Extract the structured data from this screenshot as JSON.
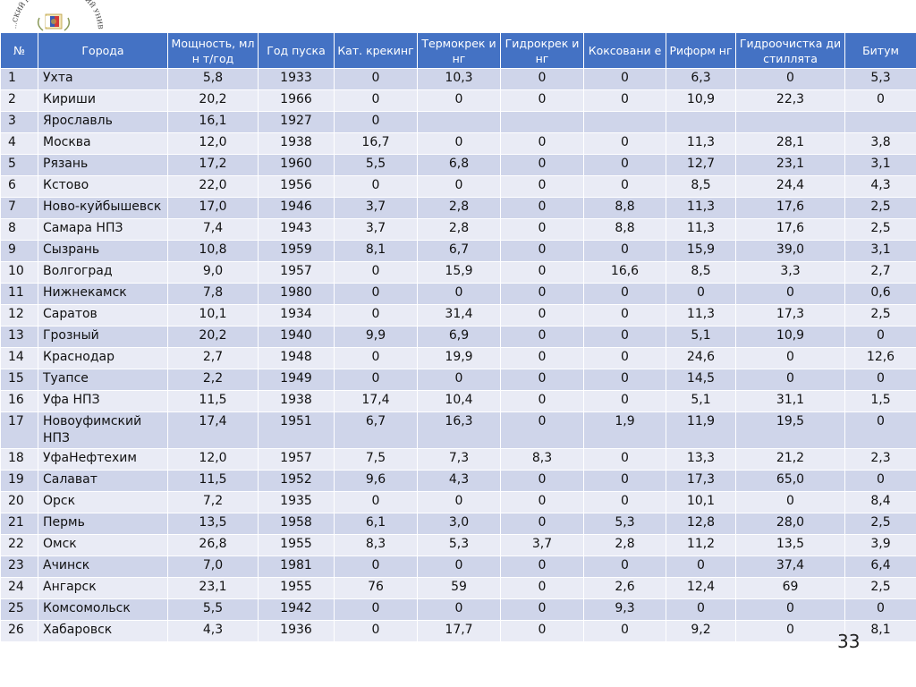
{
  "logo": {
    "text": "...СКИЙ ПОЛИТЕХНИЧЕСКИЙ УНИВЕРСИТ..."
  },
  "table": {
    "headers": [
      "№",
      "Города",
      "Мощность, млн т/год",
      "Год пуска",
      "Кат. крекинг",
      "Термокрек инг",
      "Гидрокрек инг",
      "Коксовани е",
      "Риформ нг",
      "Гидроочистка дистиллята",
      "Битум"
    ],
    "rows": [
      [
        "1",
        "Ухта",
        "5,8",
        "1933",
        "0",
        "10,3",
        "0",
        "0",
        "6,3",
        "0",
        "5,3"
      ],
      [
        "2",
        "Кириши",
        "20,2",
        "1966",
        "0",
        "0",
        "0",
        "0",
        "10,9",
        "22,3",
        "0"
      ],
      [
        "3",
        "Ярославль",
        "16,1",
        "1927",
        "0",
        "",
        "",
        "",
        "",
        "",
        ""
      ],
      [
        "4",
        "Москва",
        "12,0",
        "1938",
        "16,7",
        "0",
        "0",
        "0",
        "11,3",
        "28,1",
        "3,8"
      ],
      [
        "5",
        "Рязань",
        "17,2",
        "1960",
        "5,5",
        "6,8",
        "0",
        "0",
        "12,7",
        "23,1",
        "3,1"
      ],
      [
        "6",
        "Кстово",
        "22,0",
        "1956",
        "0",
        "0",
        "0",
        "0",
        "8,5",
        "24,4",
        "4,3"
      ],
      [
        "7",
        "Ново-куйбышевск",
        "17,0",
        "1946",
        "3,7",
        "2,8",
        "0",
        "8,8",
        "11,3",
        "17,6",
        "2,5"
      ],
      [
        "8",
        "Самара НПЗ",
        "7,4",
        "1943",
        "3,7",
        "2,8",
        "0",
        "8,8",
        "11,3",
        "17,6",
        "2,5"
      ],
      [
        "9",
        "Сызрань",
        "10,8",
        "1959",
        "8,1",
        "6,7",
        "0",
        "0",
        "15,9",
        "39,0",
        "3,1"
      ],
      [
        "10",
        "Волгоград",
        "9,0",
        "1957",
        "0",
        "15,9",
        "0",
        "16,6",
        "8,5",
        "3,3",
        "2,7"
      ],
      [
        "11",
        "Нижнекамск",
        "7,8",
        "1980",
        "0",
        "0",
        "0",
        "0",
        "0",
        "0",
        "0,6"
      ],
      [
        "12",
        "Саратов",
        "10,1",
        "1934",
        "0",
        "31,4",
        "0",
        "0",
        "11,3",
        "17,3",
        "2,5"
      ],
      [
        "13",
        "Грозный",
        "20,2",
        "1940",
        "9,9",
        "6,9",
        "0",
        "0",
        "5,1",
        "10,9",
        "0"
      ],
      [
        "14",
        "Краснодар",
        "2,7",
        "1948",
        "0",
        "19,9",
        "0",
        "0",
        "24,6",
        "0",
        "12,6"
      ],
      [
        "15",
        "Туапсе",
        "2,2",
        "1949",
        "0",
        "0",
        "0",
        "0",
        "14,5",
        "0",
        "0"
      ],
      [
        "16",
        "Уфа НПЗ",
        "11,5",
        "1938",
        "17,4",
        "10,4",
        "0",
        "0",
        "5,1",
        "31,1",
        "1,5"
      ],
      [
        "17",
        "Новоуфимский НПЗ",
        "17,4",
        "1951",
        "6,7",
        "16,3",
        "0",
        "1,9",
        "11,9",
        "19,5",
        "0"
      ],
      [
        "18",
        "УфаНефтехим",
        "12,0",
        "1957",
        "7,5",
        "7,3",
        "8,3",
        "0",
        "13,3",
        "21,2",
        "2,3"
      ],
      [
        "19",
        "Салават",
        "11,5",
        "1952",
        "9,6",
        "4,3",
        "0",
        "0",
        "17,3",
        "65,0",
        "0"
      ],
      [
        "20",
        "Орск",
        "7,2",
        "1935",
        "0",
        "0",
        "0",
        "0",
        "10,1",
        "0",
        "8,4"
      ],
      [
        "21",
        "Пермь",
        "13,5",
        "1958",
        "6,1",
        "3,0",
        "0",
        "5,3",
        "12,8",
        "28,0",
        "2,5"
      ],
      [
        "22",
        "Омск",
        "26,8",
        "1955",
        "8,3",
        "5,3",
        "3,7",
        "2,8",
        "11,2",
        "13,5",
        "3,9"
      ],
      [
        "23",
        "Ачинск",
        "7,0",
        "1981",
        "0",
        "0",
        "0",
        "0",
        "0",
        "37,4",
        "6,4"
      ],
      [
        "24",
        "Ангарск",
        "23,1",
        "1955",
        "76",
        "59",
        "0",
        "2,6",
        "12,4",
        "69",
        "2,5"
      ],
      [
        "25",
        "Комсомольск",
        "5,5",
        "1942",
        "0",
        "0",
        "0",
        "9,3",
        "0",
        "0",
        "0"
      ],
      [
        "26",
        "Хабаровск",
        "4,3",
        "1936",
        "0",
        "17,7",
        "0",
        "0",
        "9,2",
        "0",
        "8,1"
      ]
    ]
  },
  "slide": {
    "page_number": "33"
  },
  "colors": {
    "header_bg": "#4472c4",
    "row_odd": "#cfd5ea",
    "row_even": "#e9ebf5"
  }
}
